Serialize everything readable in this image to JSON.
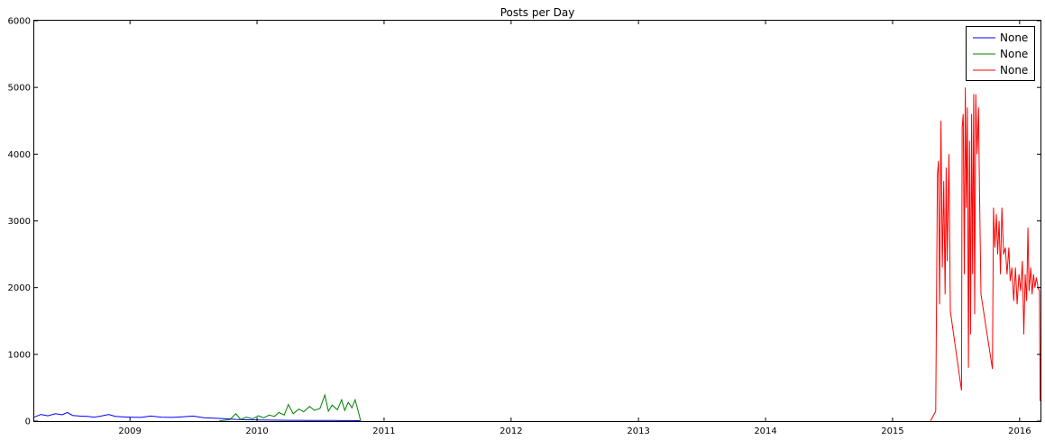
{
  "chart_data": {
    "type": "line",
    "title": "Posts per Day",
    "xlabel": "",
    "ylabel": "",
    "xlim": [
      "2008-04-01",
      "2016-03-01"
    ],
    "ylim": [
      0,
      6000
    ],
    "x_ticks": [
      "2009",
      "2010",
      "2011",
      "2012",
      "2013",
      "2014",
      "2015",
      "2016"
    ],
    "y_ticks": [
      0,
      1000,
      2000,
      3000,
      4000,
      5000,
      6000
    ],
    "grid": false,
    "legend_position": "top-right",
    "series": [
      {
        "name": "None",
        "color": "#0000ff",
        "points": [
          [
            "2008-04-01",
            60
          ],
          [
            "2008-04-20",
            100
          ],
          [
            "2008-05-10",
            80
          ],
          [
            "2008-06-01",
            110
          ],
          [
            "2008-06-20",
            95
          ],
          [
            "2008-07-05",
            130
          ],
          [
            "2008-07-20",
            85
          ],
          [
            "2008-08-10",
            75
          ],
          [
            "2008-09-01",
            70
          ],
          [
            "2008-09-20",
            60
          ],
          [
            "2008-10-10",
            75
          ],
          [
            "2008-11-01",
            100
          ],
          [
            "2008-11-20",
            70
          ],
          [
            "2008-12-10",
            65
          ],
          [
            "2009-01-01",
            60
          ],
          [
            "2009-02-01",
            55
          ],
          [
            "2009-03-01",
            75
          ],
          [
            "2009-04-01",
            60
          ],
          [
            "2009-05-01",
            55
          ],
          [
            "2009-06-01",
            65
          ],
          [
            "2009-07-01",
            75
          ],
          [
            "2009-08-01",
            50
          ],
          [
            "2009-09-01",
            45
          ],
          [
            "2009-10-01",
            35
          ],
          [
            "2009-11-01",
            25
          ],
          [
            "2009-12-01",
            20
          ],
          [
            "2010-02-01",
            15
          ],
          [
            "2010-04-01",
            12
          ],
          [
            "2010-06-01",
            10
          ],
          [
            "2010-08-01",
            10
          ],
          [
            "2010-10-01",
            8
          ],
          [
            "2010-10-25",
            5
          ]
        ]
      },
      {
        "name": "None",
        "color": "#008000",
        "points": [
          [
            "2009-09-15",
            5
          ],
          [
            "2009-10-15",
            20
          ],
          [
            "2009-11-01",
            110
          ],
          [
            "2009-11-15",
            25
          ],
          [
            "2009-12-01",
            60
          ],
          [
            "2009-12-20",
            35
          ],
          [
            "2010-01-05",
            80
          ],
          [
            "2010-01-20",
            50
          ],
          [
            "2010-02-05",
            90
          ],
          [
            "2010-02-20",
            70
          ],
          [
            "2010-03-05",
            130
          ],
          [
            "2010-03-20",
            90
          ],
          [
            "2010-04-01",
            250
          ],
          [
            "2010-04-15",
            110
          ],
          [
            "2010-05-01",
            180
          ],
          [
            "2010-05-15",
            140
          ],
          [
            "2010-06-01",
            220
          ],
          [
            "2010-06-15",
            160
          ],
          [
            "2010-07-01",
            190
          ],
          [
            "2010-07-15",
            390
          ],
          [
            "2010-07-25",
            150
          ],
          [
            "2010-08-05",
            240
          ],
          [
            "2010-08-20",
            170
          ],
          [
            "2010-09-01",
            320
          ],
          [
            "2010-09-10",
            160
          ],
          [
            "2010-09-20",
            280
          ],
          [
            "2010-10-01",
            200
          ],
          [
            "2010-10-10",
            320
          ],
          [
            "2010-10-20",
            120
          ],
          [
            "2010-10-26",
            0
          ]
        ]
      },
      {
        "name": "None",
        "color": "#ff0000",
        "points": [
          [
            "2015-04-20",
            0
          ],
          [
            "2015-05-05",
            150
          ],
          [
            "2015-05-10",
            3700
          ],
          [
            "2015-05-13",
            3900
          ],
          [
            "2015-05-16",
            1750
          ],
          [
            "2015-05-20",
            4500
          ],
          [
            "2015-05-24",
            2300
          ],
          [
            "2015-05-28",
            3600
          ],
          [
            "2015-06-01",
            1900
          ],
          [
            "2015-06-04",
            3800
          ],
          [
            "2015-06-07",
            2400
          ],
          [
            "2015-06-12",
            4000
          ],
          [
            "2015-06-16",
            1650
          ],
          [
            "2015-07-18",
            460
          ],
          [
            "2015-07-20",
            4400
          ],
          [
            "2015-07-23",
            4600
          ],
          [
            "2015-07-26",
            2200
          ],
          [
            "2015-07-29",
            5000
          ],
          [
            "2015-08-01",
            3200
          ],
          [
            "2015-08-04",
            4700
          ],
          [
            "2015-08-07",
            800
          ],
          [
            "2015-08-10",
            4200
          ],
          [
            "2015-08-13",
            1300
          ],
          [
            "2015-08-16",
            4600
          ],
          [
            "2015-08-19",
            2200
          ],
          [
            "2015-08-22",
            4900
          ],
          [
            "2015-08-25",
            1600
          ],
          [
            "2015-08-28",
            4900
          ],
          [
            "2015-09-01",
            4000
          ],
          [
            "2015-09-05",
            4700
          ],
          [
            "2015-09-08",
            3400
          ],
          [
            "2015-09-12",
            1900
          ],
          [
            "2015-10-15",
            780
          ],
          [
            "2015-10-18",
            3200
          ],
          [
            "2015-10-22",
            2600
          ],
          [
            "2015-10-26",
            3100
          ],
          [
            "2015-10-30",
            2500
          ],
          [
            "2015-11-03",
            3000
          ],
          [
            "2015-11-07",
            2200
          ],
          [
            "2015-11-11",
            3200
          ],
          [
            "2015-11-16",
            2500
          ],
          [
            "2015-11-21",
            2600
          ],
          [
            "2015-11-26",
            2200
          ],
          [
            "2015-12-01",
            2600
          ],
          [
            "2015-12-05",
            2100
          ],
          [
            "2015-12-10",
            2300
          ],
          [
            "2015-12-15",
            1800
          ],
          [
            "2015-12-20",
            2300
          ],
          [
            "2015-12-25",
            1750
          ],
          [
            "2015-12-30",
            2200
          ],
          [
            "2016-01-04",
            1950
          ],
          [
            "2016-01-09",
            2400
          ],
          [
            "2016-01-13",
            1300
          ],
          [
            "2016-01-17",
            2200
          ],
          [
            "2016-01-21",
            1800
          ],
          [
            "2016-01-25",
            2900
          ],
          [
            "2016-01-28",
            1950
          ],
          [
            "2016-02-02",
            2300
          ],
          [
            "2016-02-06",
            1900
          ],
          [
            "2016-02-10",
            2200
          ],
          [
            "2016-02-14",
            2000
          ],
          [
            "2016-02-18",
            2150
          ],
          [
            "2016-02-23",
            2000
          ],
          [
            "2016-02-27",
            1950
          ],
          [
            "2016-02-29",
            300
          ]
        ]
      }
    ]
  }
}
